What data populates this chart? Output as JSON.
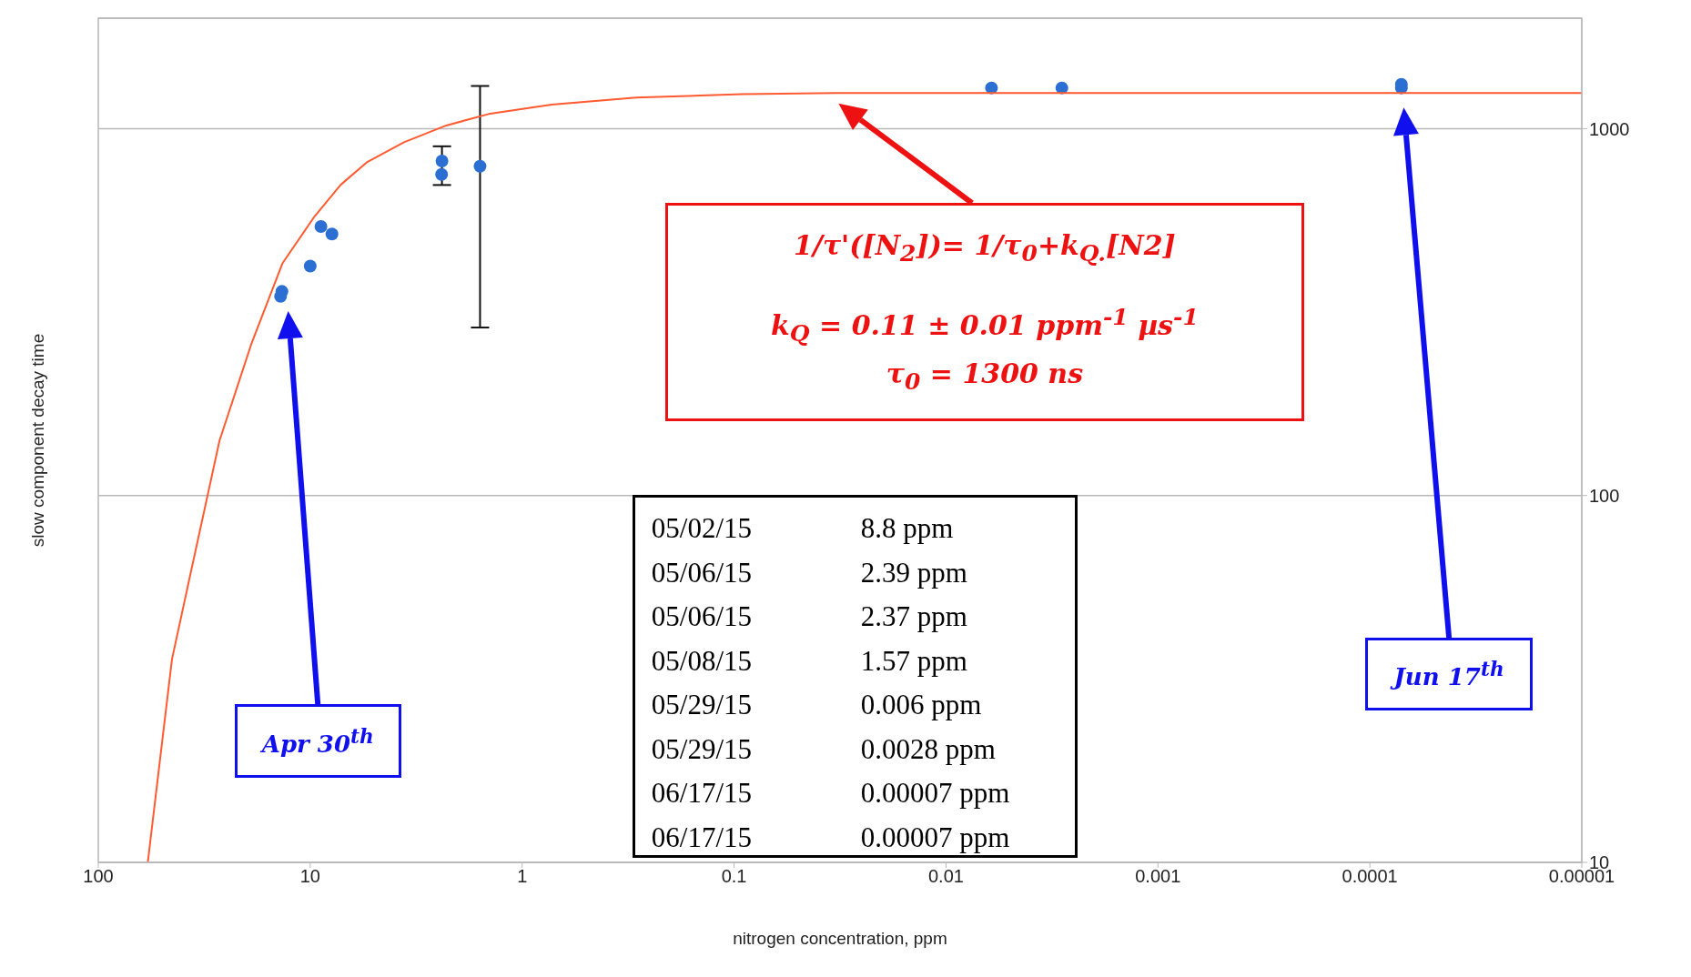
{
  "chart_data": {
    "type": "scatter",
    "xlabel": "nitrogen concentration, ppm",
    "ylabel": "slow component decay time",
    "log": "xy",
    "xlim": [
      100,
      1e-05
    ],
    "xticks": [
      100,
      10,
      1,
      0.1,
      0.01,
      0.001,
      0.0001,
      {
        "value": 1e-05,
        "label": "0.00001"
      }
    ],
    "ylim": [
      10,
      2000
    ],
    "yticks": [
      10,
      100,
      1000
    ],
    "grid": "y",
    "series": [
      {
        "color": "#2a6fd1",
        "marker": "circle",
        "x": [
          13.8,
          13.6,
          10,
          8.9,
          7.9,
          2.39,
          2.4,
          1.58,
          0.0061,
          0.00284,
          7.1e-05,
          7.1e-05
        ],
        "values": [
          349,
          360,
          422,
          541,
          516,
          816,
          750,
          790,
          1291,
          1291,
          1320,
          1291
        ],
        "errors": [
          null,
          null,
          null,
          null,
          null,
          [
            702,
            895
          ],
          null,
          [
            287,
            1307
          ],
          null,
          null,
          null,
          null
        ]
      },
      {
        "type": "line",
        "color": "#ff5a30",
        "marker": "none",
        "x": [
          58.4,
          51.4,
          44.9,
          36.9,
          26.8,
          19.0,
          13.5,
          9.55,
          7.18,
          5.38,
          3.61,
          2.28,
          1.44,
          0.726,
          0.29,
          0.092,
          0.033,
          1e-05
        ],
        "values": [
          10,
          18.6,
          35.8,
          60.4,
          141,
          258,
          430,
          576,
          703,
          811,
          918,
          1020,
          1096,
          1162,
          1216,
          1241,
          1250,
          1250
        ]
      }
    ],
    "annotations": [
      "1/τ'([N$_{2}$])= 1/τ$_{0}$+k$_{Q.}$[N2]",
      "k$_{Q}$ = 0.11 ± 0.01 ppm$^{-1}$ µs$^{-1}$",
      "τ$_{0}$ = 1300 ns",
      "Apr 30$^{th}$",
      "Jun 17$^{th}$",
      "05/02/15 8.8 ppm",
      "05/06/15 2.39 ppm",
      "05/06/15 2.37 ppm",
      "05/08/15 1.57 ppm",
      "05/29/15 0.006 ppm",
      "05/29/15 0.0028 ppm",
      "06/17/15 0.00007 ppm",
      "06/17/15 0.00007 ppm"
    ]
  }
}
